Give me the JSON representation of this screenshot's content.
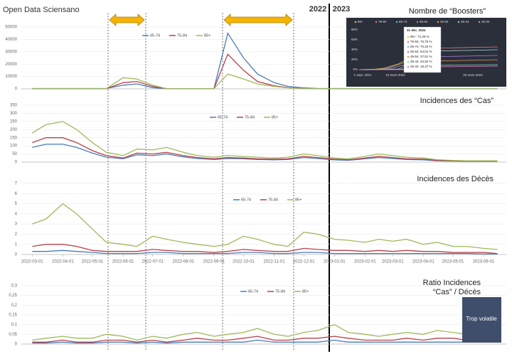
{
  "header": {
    "title": "Open Data Sciensano",
    "year_left": "2022",
    "year_right": "2023",
    "note": "Trop volatile"
  },
  "inset": {
    "legend": [
      "85+",
      "75-84",
      "65-74",
      "55-64",
      "45-54",
      "35-44",
      "25-34"
    ],
    "yticks": [
      "80%",
      "60%",
      "40%",
      "20%",
      "0%"
    ],
    "xlabels": [
      "1 sept. 2021",
      "10 mars 2022",
      "25 mars 2023"
    ],
    "tooltip": {
      "date": "31 déc. 2022",
      "rows": [
        "85+: 71,49 %",
        "75-84: 75,75 %",
        "65-74: 70,34 %",
        "55-64: 54,01 %",
        "45-54: 37,51 %",
        "35-44: 23,92 %",
        "25-34: 18,37 %"
      ]
    }
  },
  "chart_data": [
    {
      "type": "line",
      "title": "Nombre de “Boosters”",
      "x": [
        "2022-03-01",
        "2022-03-15",
        "2022-04-01",
        "2022-04-15",
        "2022-05-01",
        "2022-05-15",
        "2022-06-01",
        "2022-06-15",
        "2022-07-01",
        "2022-07-15",
        "2022-08-01",
        "2022-08-15",
        "2022-09-01",
        "2022-09-15",
        "2022-10-01",
        "2022-10-15",
        "2022-11-01",
        "2022-11-15",
        "2022-12-01",
        "2022-12-15",
        "2023-01-01",
        "2023-01-15",
        "2023-02-01",
        "2023-02-15",
        "2023-03-01",
        "2023-03-15",
        "2023-04-01",
        "2023-04-15",
        "2023-05-01",
        "2023-05-15",
        "2023-06-01",
        "2023-06-15"
      ],
      "xlim": [
        "2022-02-18",
        "2023-06-24"
      ],
      "ylim": [
        0,
        50000
      ],
      "yticks": [
        0,
        10000,
        20000,
        30000,
        40000,
        50000
      ],
      "series": [
        {
          "name": "65-74",
          "color": "#4a7ab5",
          "values": [
            300,
            300,
            300,
            300,
            300,
            300,
            3000,
            4000,
            1000,
            200,
            200,
            200,
            200,
            45000,
            25000,
            12000,
            5000,
            2000,
            800,
            300,
            300,
            300,
            300,
            300,
            300,
            300,
            300,
            300,
            300,
            300,
            300,
            300
          ]
        },
        {
          "name": "75-84",
          "color": "#b5404a",
          "values": [
            200,
            200,
            200,
            200,
            200,
            200,
            5000,
            6000,
            2000,
            200,
            200,
            200,
            200,
            28000,
            15000,
            6000,
            2500,
            1000,
            400,
            200,
            200,
            200,
            200,
            200,
            200,
            200,
            200,
            200,
            200,
            200,
            200,
            200
          ]
        },
        {
          "name": "85+",
          "color": "#9bbb59",
          "values": [
            200,
            200,
            200,
            200,
            200,
            200,
            9000,
            8000,
            3000,
            200,
            200,
            200,
            200,
            12000,
            8000,
            4000,
            2000,
            800,
            300,
            200,
            200,
            200,
            200,
            200,
            200,
            200,
            200,
            200,
            200,
            200,
            200,
            200
          ]
        }
      ]
    },
    {
      "type": "line",
      "title": "Incidences des “Cas”",
      "x": [
        "2022-03-01",
        "2022-03-15",
        "2022-04-01",
        "2022-04-15",
        "2022-05-01",
        "2022-05-15",
        "2022-06-01",
        "2022-06-15",
        "2022-07-01",
        "2022-07-15",
        "2022-08-01",
        "2022-08-15",
        "2022-09-01",
        "2022-09-15",
        "2022-10-01",
        "2022-10-15",
        "2022-11-01",
        "2022-11-15",
        "2022-12-01",
        "2022-12-15",
        "2023-01-01",
        "2023-01-15",
        "2023-02-01",
        "2023-02-15",
        "2023-03-01",
        "2023-03-15",
        "2023-04-01",
        "2023-04-15",
        "2023-05-01",
        "2023-05-15",
        "2023-06-01",
        "2023-06-15"
      ],
      "xlim": [
        "2022-02-18",
        "2023-06-24"
      ],
      "ylim": [
        0,
        350
      ],
      "yticks": [
        0,
        50,
        100,
        150,
        200,
        250,
        300,
        350
      ],
      "series": [
        {
          "name": "65-74",
          "color": "#4a7ab5",
          "values": [
            90,
            110,
            110,
            90,
            55,
            30,
            20,
            45,
            40,
            50,
            32,
            22,
            16,
            22,
            20,
            16,
            14,
            16,
            28,
            22,
            14,
            11,
            20,
            28,
            22,
            16,
            14,
            8,
            6,
            5,
            5,
            5
          ]
        },
        {
          "name": "75-84",
          "color": "#b5404a",
          "values": [
            120,
            150,
            150,
            120,
            70,
            40,
            25,
            55,
            50,
            60,
            40,
            28,
            20,
            28,
            25,
            20,
            18,
            20,
            35,
            28,
            18,
            14,
            25,
            35,
            28,
            20,
            18,
            10,
            7,
            6,
            6,
            6
          ]
        },
        {
          "name": "85+",
          "color": "#9bbb59",
          "values": [
            180,
            230,
            250,
            200,
            120,
            60,
            40,
            80,
            75,
            90,
            60,
            40,
            30,
            40,
            35,
            30,
            25,
            30,
            50,
            40,
            25,
            20,
            35,
            50,
            40,
            30,
            25,
            15,
            10,
            8,
            8,
            8
          ]
        }
      ]
    },
    {
      "type": "line",
      "title": "Incidences des Décès",
      "x": [
        "2022-03-01",
        "2022-03-15",
        "2022-04-01",
        "2022-04-15",
        "2022-05-01",
        "2022-05-15",
        "2022-06-01",
        "2022-06-15",
        "2022-07-01",
        "2022-07-15",
        "2022-08-01",
        "2022-08-15",
        "2022-09-01",
        "2022-09-15",
        "2022-10-01",
        "2022-10-15",
        "2022-11-01",
        "2022-11-15",
        "2022-12-01",
        "2022-12-15",
        "2023-01-01",
        "2023-01-15",
        "2023-02-01",
        "2023-02-15",
        "2023-03-01",
        "2023-03-15",
        "2023-04-01",
        "2023-04-15",
        "2023-05-01",
        "2023-05-15",
        "2023-06-01",
        "2023-06-15"
      ],
      "xlim": [
        "2022-02-18",
        "2023-06-24"
      ],
      "ylim": [
        0,
        7
      ],
      "yticks": [
        0,
        1,
        2,
        3,
        4,
        5,
        6,
        7
      ],
      "xticks": [
        "2022-03-01",
        "2022-04-01",
        "2022-05-01",
        "2022-06-01",
        "2022-07-01",
        "2022-08-01",
        "2022-09-01",
        "2022-10-01",
        "2022-11-01",
        "2022-12-01",
        "2023-01-01",
        "2023-02-01",
        "2023-03-01",
        "2023-04-01",
        "2023-05-01",
        "2023-06-01"
      ],
      "series": [
        {
          "name": "65-74",
          "color": "#4a7ab5",
          "values": [
            0.3,
            0.3,
            0.4,
            0.3,
            0.2,
            0.1,
            0.1,
            0.1,
            0.2,
            0.2,
            0.1,
            0.1,
            0.1,
            0.1,
            0.2,
            0.2,
            0.1,
            0.1,
            0.2,
            0.2,
            0.1,
            0.1,
            0.1,
            0.1,
            0.1,
            0.1,
            0.1,
            0.1,
            0.1,
            0.1,
            0.05,
            0.05
          ]
        },
        {
          "name": "75-84",
          "color": "#b5404a",
          "values": [
            0.8,
            1,
            1,
            0.8,
            0.4,
            0.3,
            0.3,
            0.3,
            0.5,
            0.4,
            0.3,
            0.3,
            0.2,
            0.3,
            0.5,
            0.4,
            0.3,
            0.3,
            0.6,
            0.5,
            0.4,
            0.4,
            0.3,
            0.4,
            0.3,
            0.4,
            0.3,
            0.3,
            0.2,
            0.2,
            0.2,
            0.1
          ]
        },
        {
          "name": "85+",
          "color": "#9bbb59",
          "values": [
            3,
            3.5,
            5,
            4,
            2.5,
            1.2,
            1,
            0.8,
            1.8,
            1.5,
            1.2,
            1,
            0.8,
            1,
            1.8,
            1.5,
            1,
            0.8,
            2.2,
            2,
            1.5,
            1.4,
            1.2,
            1.5,
            1.3,
            1.5,
            1,
            1.2,
            0.8,
            0.8,
            0.6,
            0.5
          ]
        }
      ]
    },
    {
      "type": "line",
      "title": "Ratio Incidences",
      "subtitle": "“Cas” / Décès",
      "x": [
        "2022-03-01",
        "2022-03-15",
        "2022-04-01",
        "2022-04-15",
        "2022-05-01",
        "2022-05-15",
        "2022-06-01",
        "2022-06-15",
        "2022-07-01",
        "2022-07-15",
        "2022-08-01",
        "2022-08-15",
        "2022-09-01",
        "2022-09-15",
        "2022-10-01",
        "2022-10-15",
        "2022-11-01",
        "2022-11-15",
        "2022-12-01",
        "2022-12-15",
        "2023-01-01",
        "2023-01-15",
        "2023-02-01",
        "2023-02-15",
        "2023-03-01",
        "2023-03-15",
        "2023-04-01",
        "2023-04-15",
        "2023-05-01",
        "2023-05-15",
        "2023-06-01",
        "2023-06-15"
      ],
      "xlim": [
        "2022-02-18",
        "2023-06-24"
      ],
      "ylim": [
        0,
        0.3
      ],
      "yticks": [
        0,
        {
          "value": 0.05,
          "label": "0,05"
        },
        {
          "value": 0.1,
          "label": "0,1"
        },
        {
          "value": 0.15,
          "label": "0,15"
        },
        {
          "value": 0.2,
          "label": "0,2"
        },
        {
          "value": 0.25,
          "label": "0,25"
        },
        {
          "value": 0.3,
          "label": "0,3"
        }
      ],
      "series": [
        {
          "name": "65-74",
          "color": "#4a7ab5",
          "values": [
            0.005,
            0.005,
            0.01,
            0.005,
            0.005,
            0.01,
            0.01,
            0.005,
            0.01,
            0.005,
            0.01,
            0.01,
            0.01,
            0.01,
            0.01,
            0.02,
            0.01,
            0.01,
            0.01,
            0.01,
            0.02,
            0.01,
            0.01,
            0.01,
            0.01,
            0.01,
            0.01,
            0.01,
            0.01,
            0.01,
            0.01,
            0.01
          ]
        },
        {
          "name": "75-84",
          "color": "#b5404a",
          "values": [
            0.01,
            0.01,
            0.02,
            0.01,
            0.01,
            0.02,
            0.02,
            0.01,
            0.02,
            0.01,
            0.02,
            0.03,
            0.02,
            0.02,
            0.03,
            0.04,
            0.02,
            0.02,
            0.03,
            0.03,
            0.04,
            0.03,
            0.02,
            0.02,
            0.02,
            0.03,
            0.02,
            0.03,
            0.03,
            0.02,
            0.03,
            0.02
          ]
        },
        {
          "name": "85+",
          "color": "#9bbb59",
          "values": [
            0.02,
            0.03,
            0.04,
            0.03,
            0.03,
            0.05,
            0.04,
            0.02,
            0.04,
            0.03,
            0.05,
            0.06,
            0.04,
            0.05,
            0.06,
            0.08,
            0.05,
            0.04,
            0.06,
            0.07,
            0.1,
            0.06,
            0.05,
            0.04,
            0.05,
            0.06,
            0.05,
            0.07,
            0.06,
            0.05,
            0.06,
            0.05
          ]
        }
      ]
    }
  ]
}
